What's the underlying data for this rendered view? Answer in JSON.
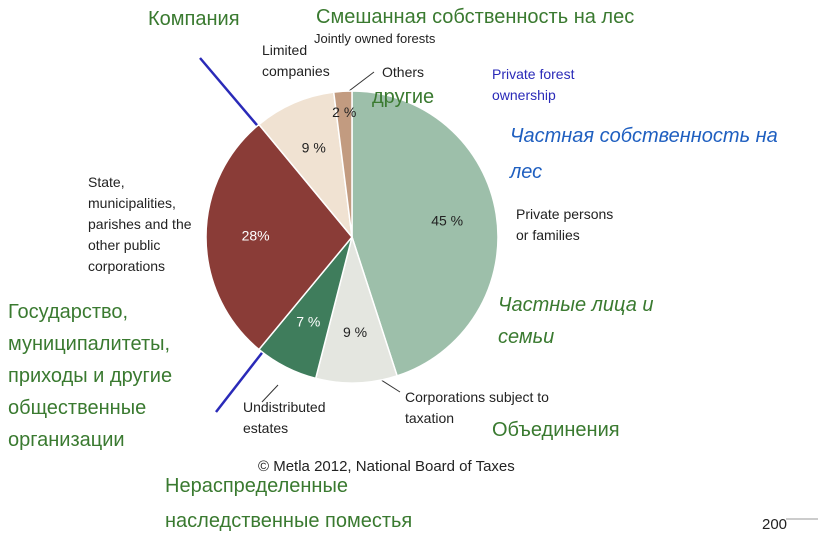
{
  "chart_data": {
    "type": "pie",
    "categories": [
      "Private persons or families",
      "Corporations subject to taxation",
      "Undistributed estates",
      "State, municipalities, parishes and the other public corporations",
      "Limited companies",
      "Jointly owned forests"
    ],
    "values": [
      45,
      9,
      7,
      28,
      9,
      2
    ],
    "value_labels": [
      "45 %",
      "9 %",
      "7 %",
      "28%",
      "9 %",
      "2 %"
    ],
    "colors": [
      "#9dbfaa",
      "#e4e6e0",
      "#3f7d5c",
      "#8a3c37",
      "#f0e2d2",
      "#c29b80"
    ],
    "others_label": "Others",
    "group_label": "Private forest ownership",
    "source": "© Metla 2012, National Board of Taxes",
    "annotations": [
      "Компания",
      "Смешанная собственность на лес",
      "другие",
      "Частная собственность на лес",
      "Частные  лица и семьи",
      "Государство, муниципалитеты, приходы и другие общественные организации",
      "Объединения",
      "Нераспределенные наследственные поместья"
    ]
  },
  "page_number": "200"
}
